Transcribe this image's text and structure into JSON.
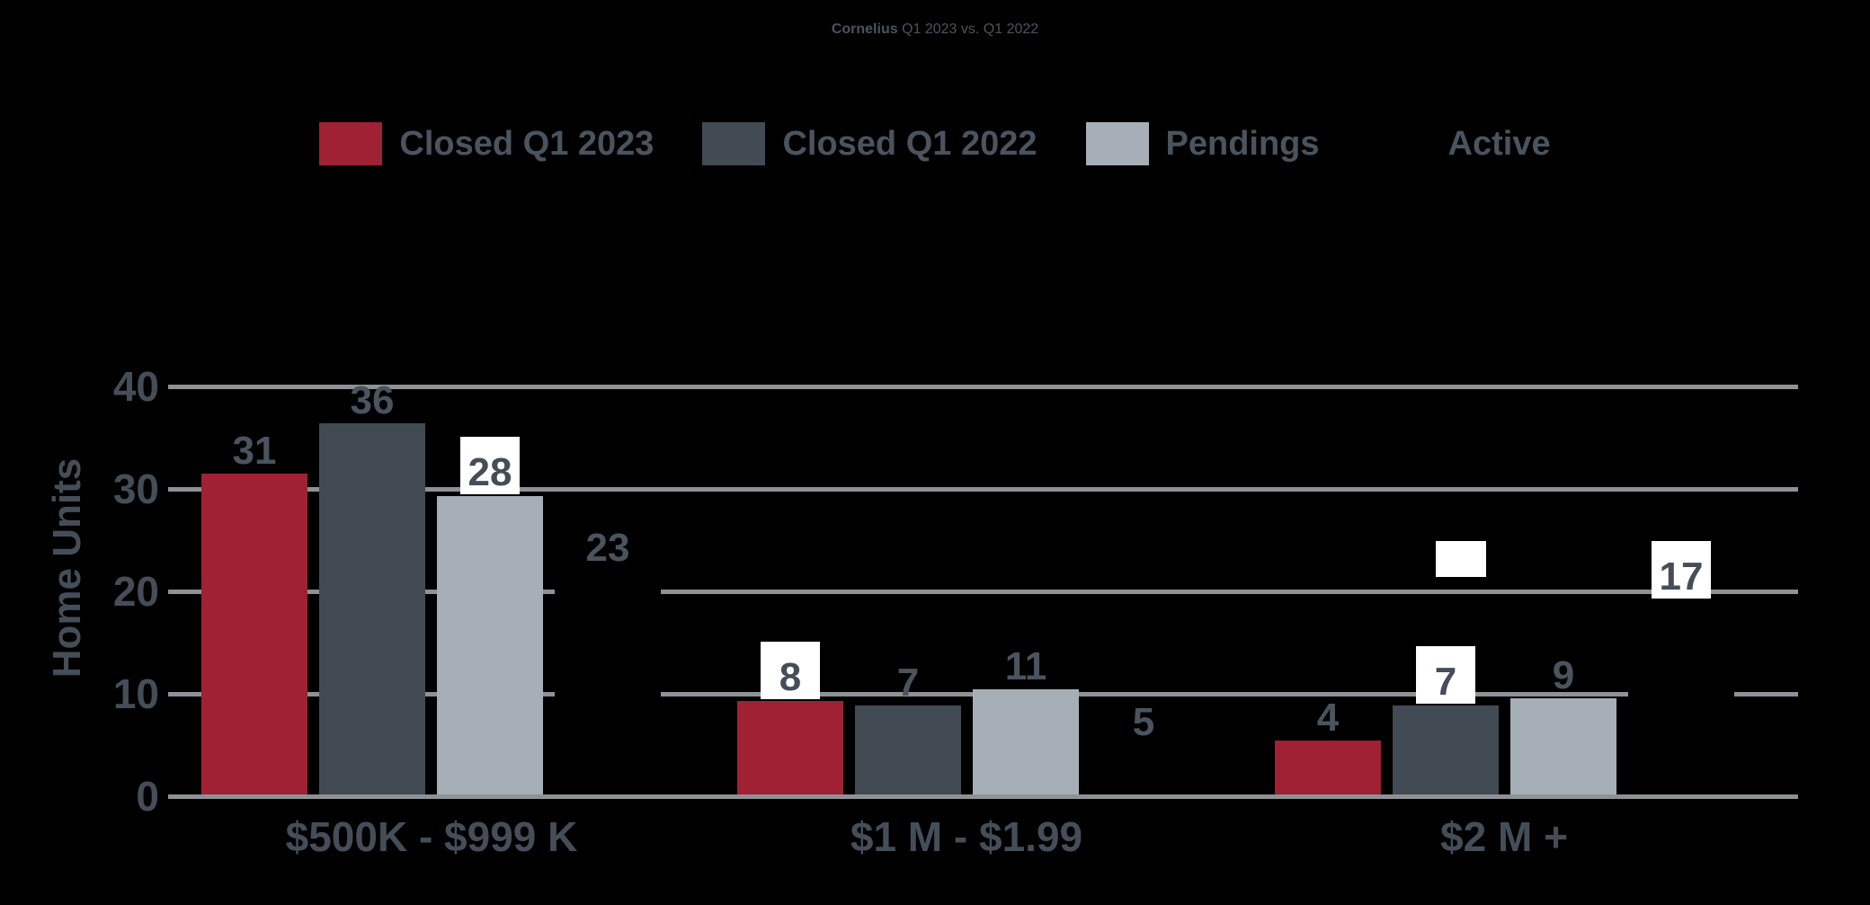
{
  "title": {
    "brand": "Cornelius",
    "rest": " Q1 2023 vs. Q1 2022"
  },
  "y_axis": {
    "title": "Home Units",
    "ticks": [
      40,
      30,
      20,
      10,
      0
    ]
  },
  "chart_data": {
    "type": "bar",
    "title": "Cornelius Q1 2023 vs. Q1 2022",
    "categories": [
      "$500K - $999 K",
      "$1 M - $1.99",
      "$2 M +"
    ],
    "series": [
      {
        "name": "Closed Q1 2023",
        "color": "#a02134",
        "values": [
          31,
          8,
          4
        ],
        "drawn_units": [
          31.5,
          9.3,
          5.4
        ],
        "boxed_labels": [
          false,
          true,
          false
        ]
      },
      {
        "name": "Closed Q1 2022",
        "color": "#424a54",
        "values": [
          36,
          7,
          7
        ],
        "drawn_units": [
          36.4,
          8.9,
          8.9
        ],
        "boxed_labels": [
          false,
          false,
          true
        ]
      },
      {
        "name": "Pendings",
        "color": "#a6afb8",
        "values": [
          28,
          11,
          9
        ],
        "drawn_units": [
          29.3,
          10.4,
          9.6
        ],
        "boxed_labels": [
          true,
          false,
          false
        ]
      },
      {
        "name": "Active",
        "color": "#000000",
        "values": [
          23,
          5,
          17
        ],
        "drawn_units": [
          22,
          5,
          19.1
        ],
        "boxed_labels": [
          false,
          false,
          true
        ]
      }
    ],
    "ylabel": "Home Units",
    "xlabel": "",
    "ylim": [
      0,
      40
    ],
    "y_ticks": [
      0,
      10,
      20,
      30,
      40
    ],
    "grid": true,
    "legend_position": "top",
    "background_color": "#000000",
    "gridline_color": "#8e9296",
    "text_color": "#4a545e",
    "annotations": [
      {
        "type": "empty-white-box",
        "text": "",
        "note": "blank white label box above Closed Q1 2022 bar in $2 M + group"
      }
    ]
  }
}
